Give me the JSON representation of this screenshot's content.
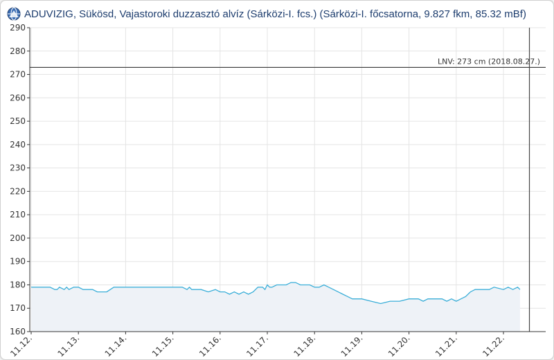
{
  "window": {
    "title": "ADUVIZIG, Sükösd, Vajastoroki duzzasztó alvíz (Sárközi-I. fcs.) (Sárközi-I. főcsatorna, 9.827 fkm, 85.32 mBf)",
    "icon": "station-globe-icon"
  },
  "colors": {
    "series": "#3aaed8",
    "fill": "#eef2f7",
    "grid": "#e4e4e4",
    "axis": "#333333",
    "reference": "#444444"
  },
  "chart_data": {
    "type": "area",
    "title": "",
    "xlabel": "",
    "ylabel": "",
    "ylim": [
      160,
      290
    ],
    "yticks": [
      160,
      170,
      180,
      190,
      200,
      210,
      220,
      230,
      240,
      250,
      260,
      270,
      280,
      290
    ],
    "xlim": [
      0,
      10.55
    ],
    "xticks": [
      {
        "label": "11.12.",
        "value": 0
      },
      {
        "label": "11.13.",
        "value": 1
      },
      {
        "label": "11.14.",
        "value": 2
      },
      {
        "label": "11.15.",
        "value": 3
      },
      {
        "label": "11.16.",
        "value": 4
      },
      {
        "label": "11.17.",
        "value": 5
      },
      {
        "label": "11.18.",
        "value": 6
      },
      {
        "label": "11.19.",
        "value": 7
      },
      {
        "label": "11.20.",
        "value": 8
      },
      {
        "label": "11.21.",
        "value": 9
      },
      {
        "label": "11.22.",
        "value": 10
      }
    ],
    "grid": true,
    "reference_line": {
      "value": 273,
      "label": "LNV: 273 cm (2018.08.27.)"
    },
    "current_time_marker": 10.55,
    "series": [
      {
        "x": [
          0,
          0.4,
          0.5,
          0.55,
          0.6,
          0.7,
          0.75,
          0.8,
          0.9,
          1.0,
          1.1,
          1.3,
          1.4,
          1.6,
          1.75,
          1.9,
          2.0,
          2.1,
          2.5,
          2.8,
          3.0,
          3.1,
          3.2,
          3.3,
          3.35,
          3.4,
          3.6,
          3.75,
          3.9,
          4.0,
          4.1,
          4.2,
          4.3,
          4.4,
          4.5,
          4.6,
          4.7,
          4.8,
          4.9,
          4.95,
          5.0,
          5.05,
          5.1,
          5.2,
          5.3,
          5.4,
          5.5,
          5.6,
          5.7,
          5.8,
          5.9,
          6.0,
          6.1,
          6.2,
          6.3,
          6.4,
          6.5,
          6.6,
          6.7,
          6.8,
          6.9,
          7.0,
          7.2,
          7.4,
          7.6,
          7.8,
          8.0,
          8.2,
          8.3,
          8.4,
          8.6,
          8.7,
          8.8,
          8.9,
          9.0,
          9.1,
          9.2,
          9.3,
          9.4,
          9.6,
          9.7,
          9.8,
          10.0,
          10.1,
          10.2,
          10.3,
          10.35
        ],
        "y": [
          179,
          179,
          178,
          178,
          179,
          178,
          179,
          178,
          179,
          179,
          178,
          178,
          177,
          177,
          179,
          179,
          179,
          179,
          179,
          179,
          179,
          179,
          179,
          178,
          179,
          178,
          178,
          177,
          178,
          177,
          177,
          176,
          177,
          176,
          177,
          176,
          177,
          179,
          179,
          178,
          180,
          179,
          179,
          180,
          180,
          180,
          181,
          181,
          180,
          180,
          180,
          179,
          179,
          180,
          179,
          178,
          177,
          176,
          175,
          174,
          174,
          174,
          173,
          172,
          173,
          173,
          174,
          174,
          173,
          174,
          174,
          174,
          173,
          174,
          173,
          174,
          175,
          177,
          178,
          178,
          178,
          179,
          178,
          179,
          178,
          179,
          178
        ]
      }
    ]
  }
}
